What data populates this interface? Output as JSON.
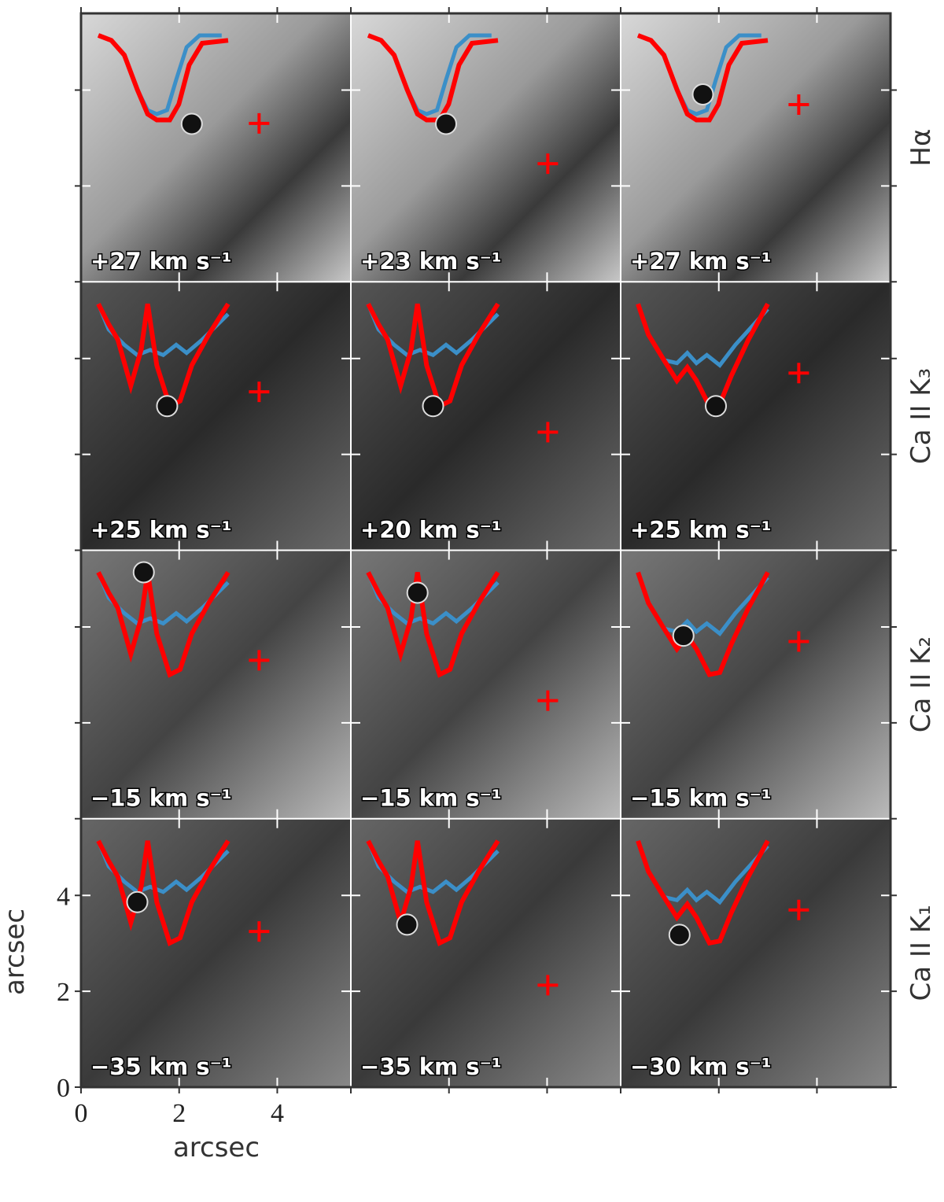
{
  "figure": {
    "xlabel": "arcsec",
    "ylabel": "arcsec",
    "xlim": [
      0,
      5.5
    ],
    "ylim": [
      0,
      5.6
    ],
    "xticks": [
      0,
      2,
      4
    ],
    "yticks": [
      0,
      2,
      4
    ],
    "rows": [
      {
        "label": "Hα",
        "panels": [
          {
            "velocity": "+27 km s⁻¹"
          },
          {
            "velocity": "+23 km s⁻¹"
          },
          {
            "velocity": "+27 km s⁻¹"
          }
        ]
      },
      {
        "label": "Ca II K₃",
        "panels": [
          {
            "velocity": "+25 km s⁻¹"
          },
          {
            "velocity": "+20 km s⁻¹"
          },
          {
            "velocity": "+25 km s⁻¹"
          }
        ]
      },
      {
        "label": "Ca II K₂",
        "panels": [
          {
            "velocity": "−15 km s⁻¹"
          },
          {
            "velocity": "−15 km s⁻¹"
          },
          {
            "velocity": "−15 km s⁻¹"
          }
        ]
      },
      {
        "label": "Ca II K₁",
        "panels": [
          {
            "velocity": "−35 km s⁻¹"
          },
          {
            "velocity": "−35 km s⁻¹"
          },
          {
            "velocity": "−30 km s⁻¹"
          }
        ]
      }
    ]
  }
}
